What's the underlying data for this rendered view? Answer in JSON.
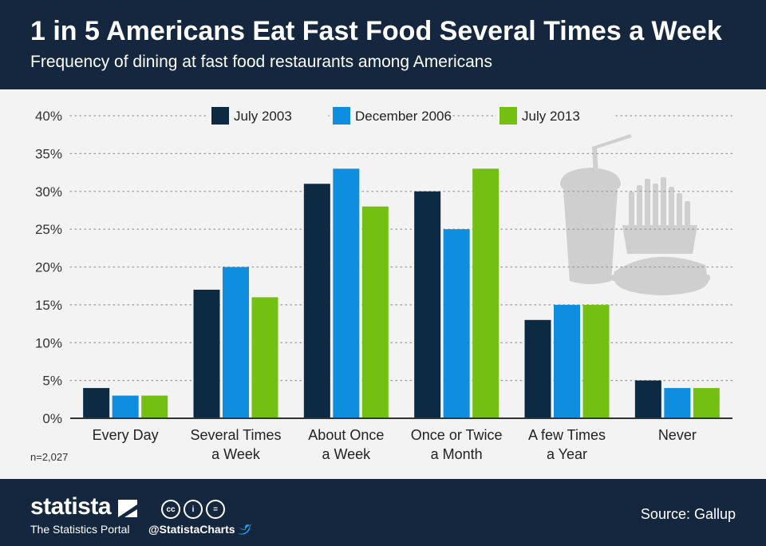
{
  "header": {
    "title": "1 in 5 Americans Eat Fast Food Several Times a Week",
    "subtitle": "Frequency of dining at fast food restaurants among Americans"
  },
  "colors": {
    "header_bg": "#14273e",
    "chart_bg": "#f3f3f3",
    "series": [
      "#0d2a43",
      "#0f8ee0",
      "#73bf12"
    ],
    "illustration": "#cfcfcf",
    "gridline": "#9a9a9a"
  },
  "chart_data": {
    "type": "bar",
    "title": "1 in 5 Americans Eat Fast Food Several Times a Week",
    "subtitle": "Frequency of dining at fast food restaurants among Americans",
    "categories": [
      [
        "Every Day"
      ],
      [
        "Several Times",
        "a Week"
      ],
      [
        "About Once",
        "a Week"
      ],
      [
        "Once or Twice",
        "a Month"
      ],
      [
        "A few Times",
        "a Year"
      ],
      [
        "Never"
      ]
    ],
    "series": [
      {
        "name": "July 2003",
        "values": [
          4,
          17,
          31,
          30,
          13,
          5
        ]
      },
      {
        "name": "December 2006",
        "values": [
          3,
          20,
          33,
          25,
          15,
          4
        ]
      },
      {
        "name": "July 2013",
        "values": [
          3,
          16,
          28,
          33,
          15,
          4
        ]
      }
    ],
    "ylim": [
      0,
      40
    ],
    "yticks": [
      0,
      5,
      10,
      15,
      20,
      25,
      30,
      35,
      40
    ],
    "ytick_suffix": "%",
    "grid": true,
    "legend_position": "top-center",
    "note": "n=2,027"
  },
  "illustration": {
    "icon": "fast-food-icon"
  },
  "footer": {
    "brand": "statista",
    "tagline": "The Statistics Portal",
    "handle": "@StatistaCharts",
    "license_icons": [
      "cc-icon",
      "by-icon",
      "nd-icon"
    ],
    "license_labels": [
      "cc",
      "i",
      "="
    ],
    "source": "Source: Gallup"
  }
}
